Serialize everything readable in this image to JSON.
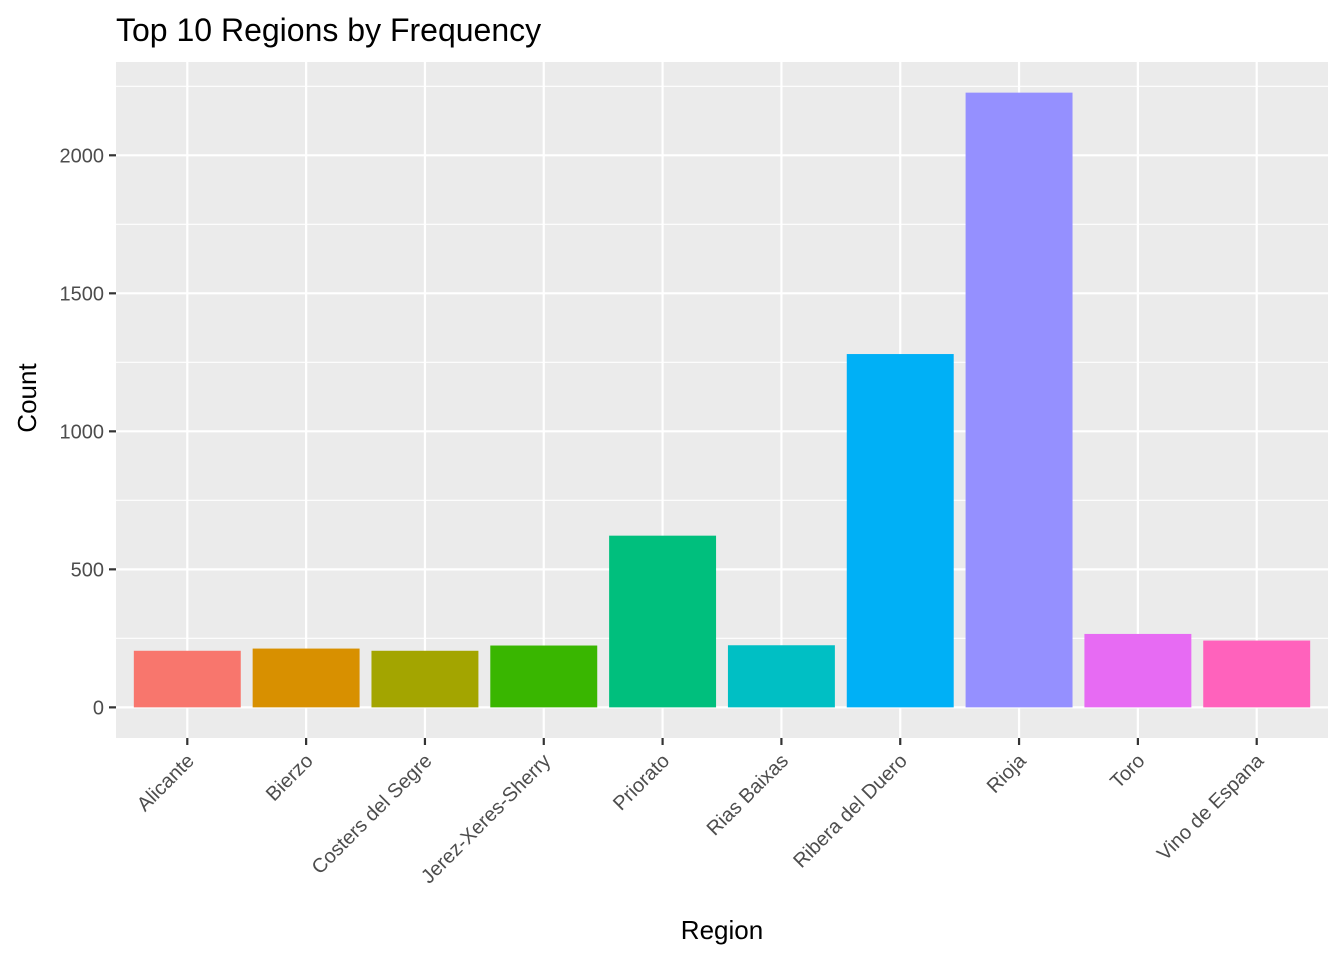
{
  "chart_data": {
    "type": "bar",
    "title": "Top 10 Regions by Frequency",
    "xlabel": "Region",
    "ylabel": "Count",
    "categories": [
      "Alicante",
      "Bierzo",
      "Costers del Segre",
      "Jerez-Xeres-Sherry",
      "Priorato",
      "Rias Baixas",
      "Ribera del Duero",
      "Rioja",
      "Toro",
      "Vino de Espana"
    ],
    "values": [
      205,
      213,
      205,
      224,
      622,
      225,
      1280,
      2227,
      266,
      242
    ],
    "colors": [
      "#F8766D",
      "#D89000",
      "#A3A500",
      "#39B600",
      "#00BF7D",
      "#00BFC4",
      "#00B0F6",
      "#9590FF",
      "#E76BF3",
      "#FF62BC"
    ],
    "yticks": [
      0,
      500,
      1000,
      1500,
      2000
    ],
    "ylim": [
      -111,
      2338
    ],
    "panel_background": "#EBEBEB",
    "grid": true,
    "legend": "none"
  }
}
